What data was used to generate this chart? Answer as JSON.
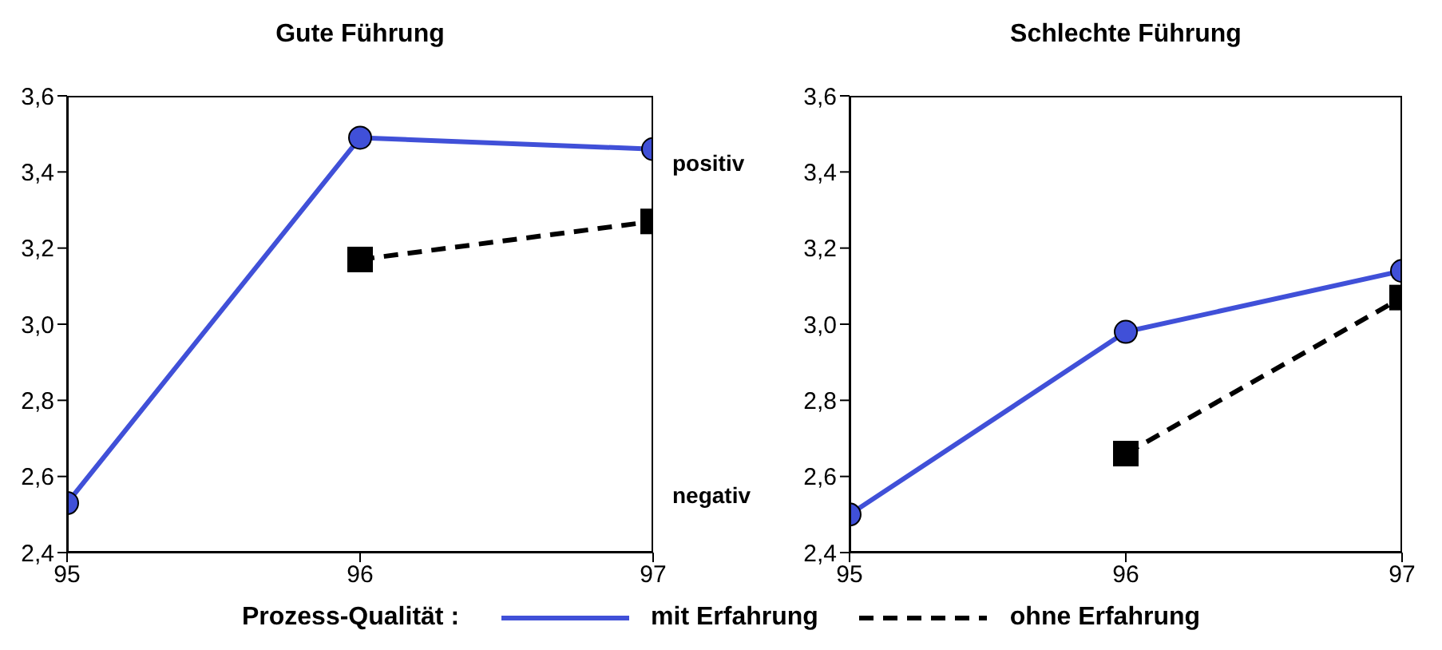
{
  "chart_data": [
    {
      "type": "line",
      "title": "Gute Führung",
      "xlim": [
        95,
        97
      ],
      "xticks": [
        95,
        96,
        97
      ],
      "ylim": [
        2.4,
        3.6
      ],
      "yticks": [
        {
          "value": 2.4,
          "label": "2,4"
        },
        {
          "value": 2.6,
          "label": "2,6"
        },
        {
          "value": 2.8,
          "label": "2,8"
        },
        {
          "value": 3.0,
          "label": "3,0"
        },
        {
          "value": 3.2,
          "label": "3,2"
        },
        {
          "value": 3.4,
          "label": "3,4"
        },
        {
          "value": 3.6,
          "label": "3,6"
        }
      ],
      "grid": false,
      "legend": "bottom",
      "legend_title": "Prozess-Qualität :",
      "annotations": [
        "positiv",
        "negativ"
      ],
      "series": [
        {
          "name": "mit Erfahrung",
          "color": "#4050d8",
          "x": [
            95,
            96,
            97
          ],
          "values": [
            2.53,
            3.49,
            3.46
          ],
          "marker": "circle",
          "line_style": "solid"
        },
        {
          "name": "ohne Erfahrung",
          "color": "#000000",
          "x": [
            96,
            97
          ],
          "values": [
            3.17,
            3.27
          ],
          "marker": "square",
          "line_style": "dashed"
        }
      ]
    },
    {
      "type": "line",
      "title": "Schlechte Führung",
      "xlim": [
        95,
        97
      ],
      "xticks": [
        95,
        96,
        97
      ],
      "ylim": [
        2.4,
        3.6
      ],
      "yticks": [
        {
          "value": 2.4,
          "label": "2,4"
        },
        {
          "value": 2.6,
          "label": "2,6"
        },
        {
          "value": 2.8,
          "label": "2,8"
        },
        {
          "value": 3.0,
          "label": "3,0"
        },
        {
          "value": 3.2,
          "label": "3,2"
        },
        {
          "value": 3.4,
          "label": "3,4"
        },
        {
          "value": 3.6,
          "label": "3,6"
        }
      ],
      "grid": false,
      "legend": false,
      "series": [
        {
          "color": "#4050d8",
          "x": [
            95,
            96,
            97
          ],
          "values": [
            2.5,
            2.98,
            3.14
          ],
          "marker": "circle",
          "line_style": "solid"
        },
        {
          "color": "#000000",
          "x": [
            96,
            97
          ],
          "values": [
            2.66,
            3.07
          ],
          "marker": "square",
          "line_style": "dashed"
        }
      ]
    }
  ]
}
